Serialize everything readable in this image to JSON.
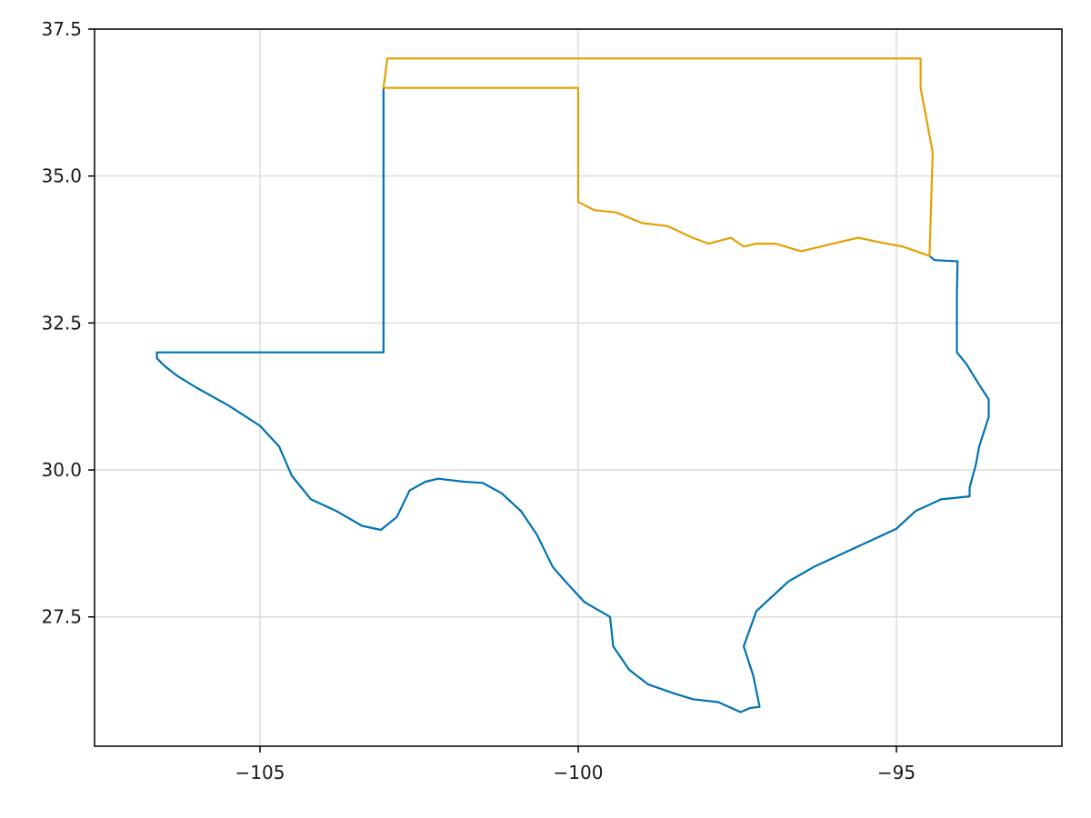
{
  "chart_data": {
    "type": "line",
    "title": "",
    "xlabel": "",
    "ylabel": "",
    "xlim": [
      -107.6,
      -92.4
    ],
    "ylim": [
      25.3,
      37.5
    ],
    "grid": true,
    "legend": "none",
    "xticks": [
      {
        "value": -105,
        "label": "−105"
      },
      {
        "value": -100,
        "label": "−100"
      },
      {
        "value": -95,
        "label": "−95"
      }
    ],
    "yticks": [
      {
        "value": 27.5,
        "label": "27.5"
      },
      {
        "value": 30.0,
        "label": "30.0"
      },
      {
        "value": 32.5,
        "label": "32.5"
      },
      {
        "value": 35.0,
        "label": "35.0"
      },
      {
        "value": 37.5,
        "label": "37.5"
      }
    ],
    "series": [
      {
        "color": "#0072b2",
        "points": [
          [
            -103.06,
            36.5
          ],
          [
            -103.06,
            34.0
          ],
          [
            -103.06,
            33.0
          ],
          [
            -103.06,
            32.0
          ],
          [
            -104.5,
            32.0
          ],
          [
            -106.62,
            32.0
          ],
          [
            -106.62,
            31.9
          ],
          [
            -106.5,
            31.77
          ],
          [
            -106.3,
            31.6
          ],
          [
            -106.0,
            31.4
          ],
          [
            -105.5,
            31.1
          ],
          [
            -105.0,
            30.75
          ],
          [
            -104.7,
            30.4
          ],
          [
            -104.5,
            29.9
          ],
          [
            -104.2,
            29.5
          ],
          [
            -103.8,
            29.3
          ],
          [
            -103.4,
            29.05
          ],
          [
            -103.1,
            28.98
          ],
          [
            -102.85,
            29.2
          ],
          [
            -102.65,
            29.65
          ],
          [
            -102.4,
            29.8
          ],
          [
            -102.2,
            29.85
          ],
          [
            -101.8,
            29.8
          ],
          [
            -101.5,
            29.78
          ],
          [
            -101.2,
            29.6
          ],
          [
            -100.9,
            29.3
          ],
          [
            -100.65,
            28.9
          ],
          [
            -100.4,
            28.35
          ],
          [
            -100.2,
            28.1
          ],
          [
            -99.9,
            27.75
          ],
          [
            -99.5,
            27.5
          ],
          [
            -99.45,
            27.0
          ],
          [
            -99.2,
            26.6
          ],
          [
            -98.9,
            26.35
          ],
          [
            -98.5,
            26.2
          ],
          [
            -98.2,
            26.1
          ],
          [
            -97.8,
            26.05
          ],
          [
            -97.45,
            25.88
          ],
          [
            -97.3,
            25.95
          ],
          [
            -97.15,
            25.97
          ],
          [
            -97.25,
            26.5
          ],
          [
            -97.4,
            27.0
          ],
          [
            -97.2,
            27.6
          ],
          [
            -96.7,
            28.1
          ],
          [
            -96.3,
            28.35
          ],
          [
            -95.6,
            28.7
          ],
          [
            -95.0,
            29.0
          ],
          [
            -94.7,
            29.3
          ],
          [
            -94.3,
            29.5
          ],
          [
            -93.85,
            29.55
          ],
          [
            -93.85,
            29.7
          ],
          [
            -93.75,
            30.1
          ],
          [
            -93.7,
            30.4
          ],
          [
            -93.55,
            30.9
          ],
          [
            -93.55,
            31.2
          ],
          [
            -93.7,
            31.45
          ],
          [
            -93.9,
            31.8
          ],
          [
            -94.05,
            32.0
          ],
          [
            -94.05,
            33.0
          ],
          [
            -94.04,
            33.55
          ],
          [
            -94.4,
            33.57
          ],
          [
            -94.48,
            33.64
          ]
        ]
      },
      {
        "color": "#e69f00",
        "points": [
          [
            -94.48,
            33.64
          ],
          [
            -94.9,
            33.8
          ],
          [
            -95.3,
            33.88
          ],
          [
            -95.6,
            33.95
          ],
          [
            -96.0,
            33.85
          ],
          [
            -96.5,
            33.72
          ],
          [
            -96.9,
            33.85
          ],
          [
            -97.2,
            33.85
          ],
          [
            -97.4,
            33.8
          ],
          [
            -97.6,
            33.95
          ],
          [
            -97.95,
            33.85
          ],
          [
            -98.2,
            33.95
          ],
          [
            -98.6,
            34.15
          ],
          [
            -99.0,
            34.2
          ],
          [
            -99.4,
            34.38
          ],
          [
            -99.75,
            34.42
          ],
          [
            -100.0,
            34.56
          ],
          [
            -100.0,
            36.5
          ],
          [
            -103.06,
            36.5
          ],
          [
            -103.0,
            37.0
          ],
          [
            -100.0,
            37.0
          ],
          [
            -97.0,
            37.0
          ],
          [
            -94.62,
            37.0
          ],
          [
            -94.62,
            36.5
          ],
          [
            -94.43,
            35.4
          ],
          [
            -94.48,
            33.64
          ]
        ]
      }
    ]
  }
}
